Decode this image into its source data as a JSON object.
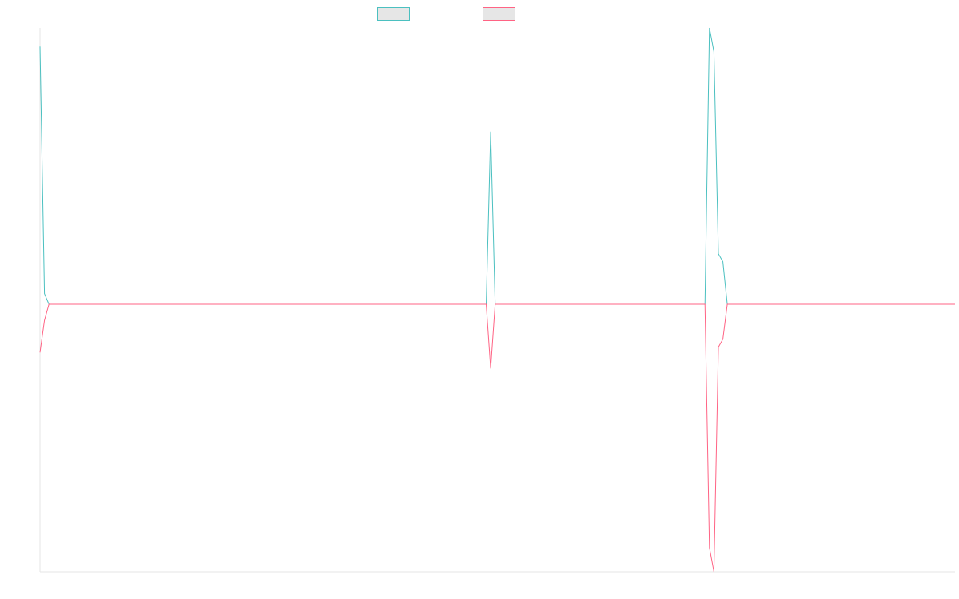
{
  "chart_data": {
    "type": "line",
    "title": "",
    "xlabel": "",
    "ylabel": "",
    "x": [
      0,
      1,
      2,
      3,
      99,
      100,
      101,
      102,
      103,
      148,
      149,
      150,
      151,
      152,
      153,
      154,
      205
    ],
    "ylim": [
      -1,
      1
    ],
    "grid": false,
    "legend": "top-center",
    "series": [
      {
        "color": "#4bc0c0",
        "values": [
          0.97,
          0.04,
          0.0,
          0.0,
          0.0,
          0.0,
          0.65,
          0.0,
          0.0,
          0.0,
          0.0,
          1.04,
          0.95,
          0.19,
          0.16,
          0.0,
          0.0
        ]
      },
      {
        "color": "#ff6384",
        "values": [
          -0.18,
          -0.06,
          0.0,
          0.0,
          0.0,
          0.0,
          -0.24,
          0.0,
          0.0,
          0.0,
          0.0,
          -0.91,
          -1.0,
          -0.16,
          -0.13,
          0.0,
          0.0
        ]
      }
    ]
  }
}
